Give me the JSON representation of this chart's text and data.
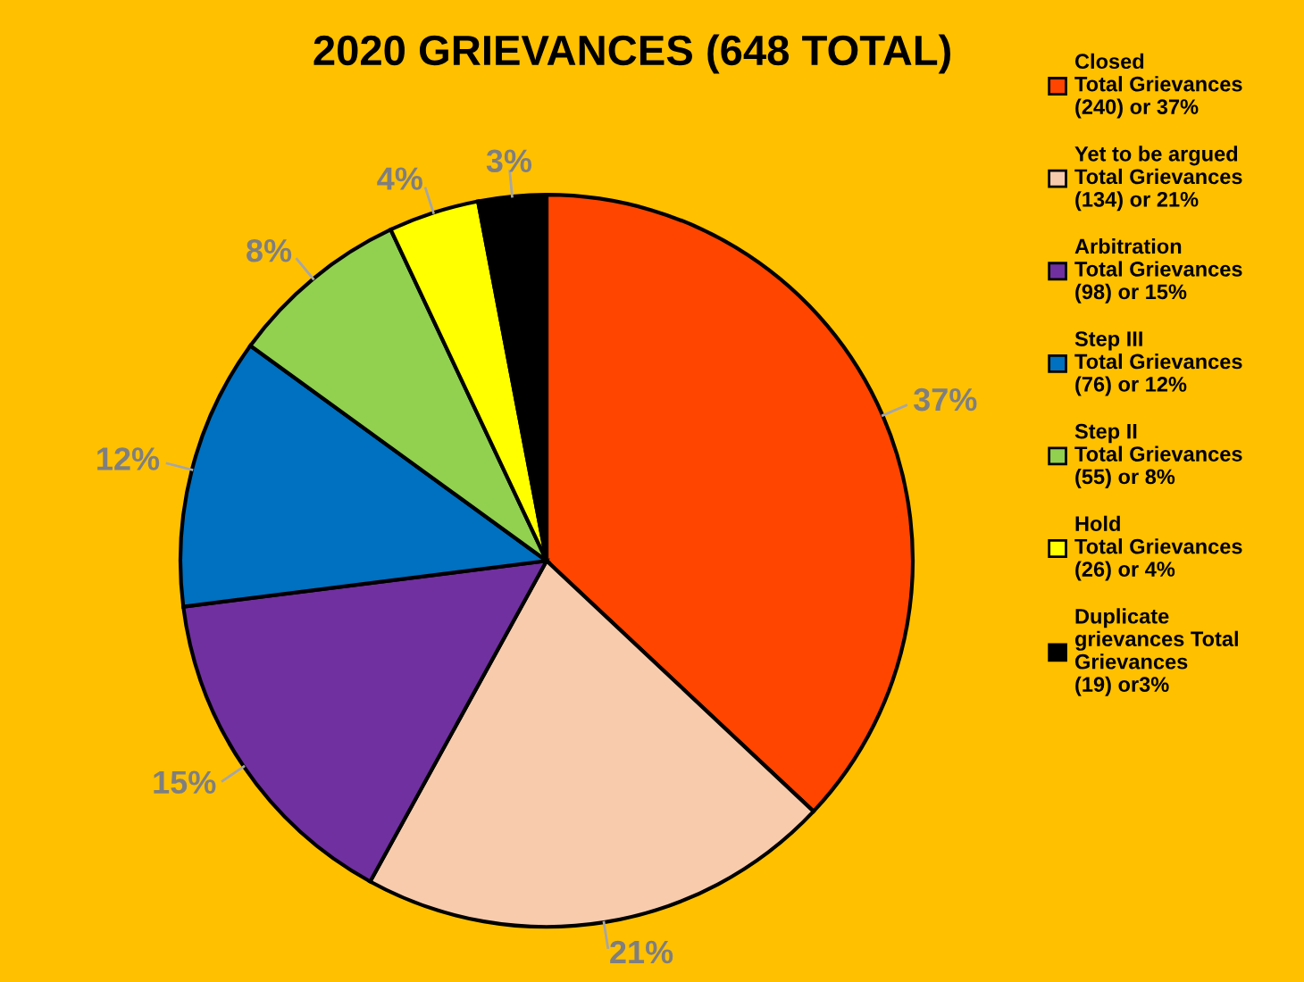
{
  "chart_data": {
    "type": "pie",
    "title": "2020 GRIEVANCES (648 TOTAL)",
    "categories": [
      "Closed\nTotal Grievances\n(240) or 37%",
      "Yet to be argued\nTotal Grievances\n(134) or 21%",
      "Arbitration\nTotal Grievances\n(98) or 15%",
      "Step III\nTotal Grievances\n(76) or 12%",
      "Step II\nTotal Grievances\n(55) or 8%",
      "Hold\nTotal Grievances\n(26) or 4%",
      "Duplicate\ngrievances Total\nGrievances\n(19) or3%"
    ],
    "values": [
      37,
      21,
      15,
      12,
      8,
      4,
      3
    ],
    "colors": [
      "#ff4500",
      "#f8cbad",
      "#7030a0",
      "#0070c0",
      "#92d050",
      "#ffff00",
      "#000000"
    ],
    "value_labels": [
      "37%",
      "21%",
      "15%",
      "12%",
      "8%",
      "4%",
      "3%"
    ],
    "legend": "right"
  }
}
